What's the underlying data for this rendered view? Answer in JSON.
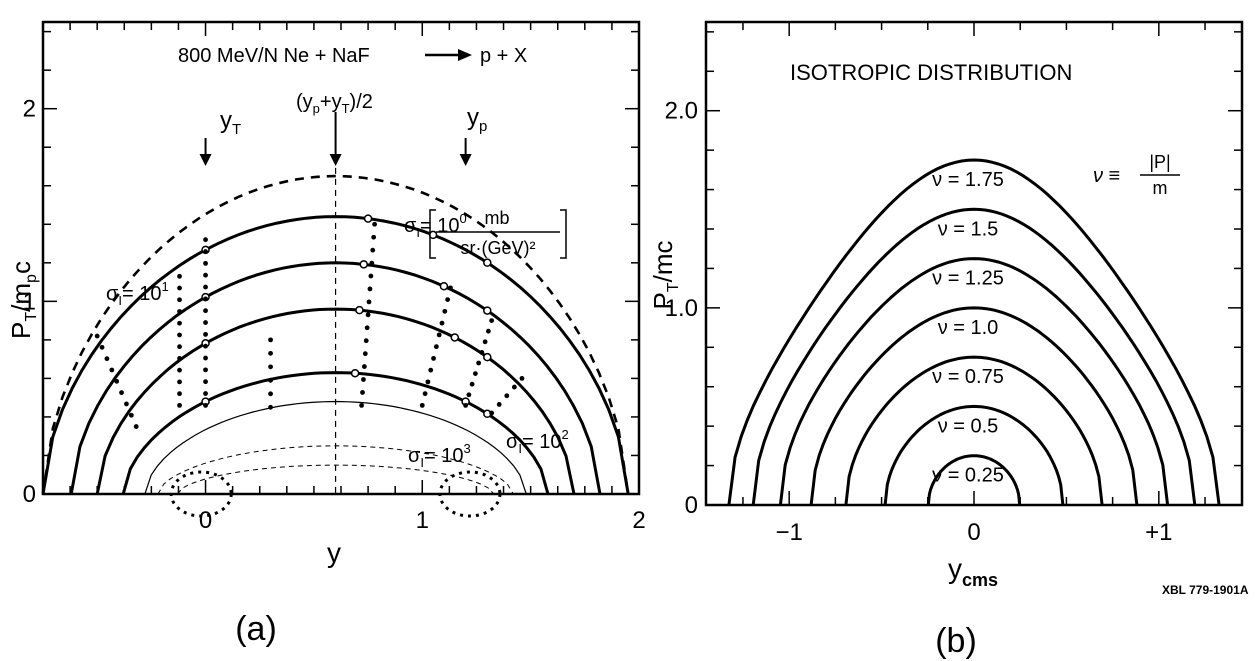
{
  "chart_data": [
    {
      "type": "line",
      "panel_label": "(a)",
      "title": "800 MeV/N  Ne + NaF",
      "title_product": "p + X",
      "xlabel": "y",
      "ylabel_main": "P",
      "ylabel_sub": "T",
      "ylabel_rest": "/m",
      "ylabel_sub2": "p",
      "ylabel_tail": "c",
      "xlim": [
        -0.75,
        2.0
      ],
      "ylim": [
        0,
        2.45
      ],
      "xticks": [
        0,
        1,
        2
      ],
      "xtick_labels": [
        "0",
        "1",
        "2"
      ],
      "yticks": [
        0,
        1,
        2
      ],
      "ytick_labels": [
        "0",
        "1",
        "2"
      ],
      "markers": [
        {
          "label_main": "y",
          "label_sub": "T",
          "x": 0
        },
        {
          "label_main": "(y",
          "label_sub": "p",
          "label_mid": "+y",
          "label_sub2": "T",
          "label_end": ")/2",
          "x": 0.6
        },
        {
          "label_main": "y",
          "label_sub": "p",
          "x": 1.2
        }
      ],
      "units": {
        "numerator": "mb",
        "denominator": "sr·(GeV)²"
      },
      "contour_labels": [
        {
          "text": "σ",
          "sub": "I",
          "eq": "= 10",
          "exp": "1"
        },
        {
          "text": "σ",
          "sub": "I",
          "eq": "= 10",
          "exp": "0"
        },
        {
          "text": "σ",
          "sub": "I",
          "eq": "= 10",
          "exp": "2"
        },
        {
          "text": "σ",
          "sub": "I",
          "eq": "= 10",
          "exp": "3"
        }
      ],
      "series": [
        {
          "style": "dashed-heavy",
          "center": 0.6,
          "apex": 1.65,
          "half_width": 1.35
        },
        {
          "style": "solid",
          "center": 0.6,
          "apex": 1.44,
          "half_width": 1.35
        },
        {
          "style": "solid",
          "center": 0.6,
          "apex": 1.2,
          "half_width": 1.22
        },
        {
          "style": "solid",
          "center": 0.6,
          "apex": 0.96,
          "half_width": 1.1
        },
        {
          "style": "solid",
          "center": 0.6,
          "apex": 0.63,
          "half_width": 0.98
        },
        {
          "style": "thin",
          "center": 0.6,
          "apex": 0.48,
          "half_width": 0.88
        },
        {
          "style": "thin-dashed",
          "center": 0.6,
          "apex": 0.25,
          "half_width": 0.82
        },
        {
          "style": "thin-dashed",
          "center": 0.6,
          "apex": 0.15,
          "half_width": 0.73
        }
      ]
    },
    {
      "type": "line",
      "panel_label": "(b)",
      "title": "ISOTROPIC DISTRIBUTION",
      "xlabel_main": "y",
      "xlabel_sub": "cms",
      "ylabel": "P",
      "ylabel_sub": "T",
      "ylabel_rest": "/mc",
      "xlim": [
        -1.45,
        1.45
      ],
      "ylim": [
        0,
        2.45
      ],
      "xticks": [
        -1,
        0,
        1
      ],
      "xtick_labels": [
        "−1",
        "0",
        "+1"
      ],
      "yticks": [
        0,
        1.0,
        2.0
      ],
      "ytick_labels": [
        "0",
        "1.0",
        "2.0"
      ],
      "definition": {
        "lhs": "ν ≡",
        "num": "|P|",
        "den": "m"
      },
      "series": [
        {
          "name": "ν = 1.75",
          "nu": 1.75
        },
        {
          "name": "ν = 1.5",
          "nu": 1.5
        },
        {
          "name": "ν = 1.25",
          "nu": 1.25
        },
        {
          "name": "ν = 1.0",
          "nu": 1.0
        },
        {
          "name": "ν = 0.75",
          "nu": 0.75
        },
        {
          "name": "ν = 0.5",
          "nu": 0.5
        },
        {
          "name": "ν = 0.25",
          "nu": 0.25
        }
      ]
    }
  ],
  "credit": "XBL 779-1901A"
}
